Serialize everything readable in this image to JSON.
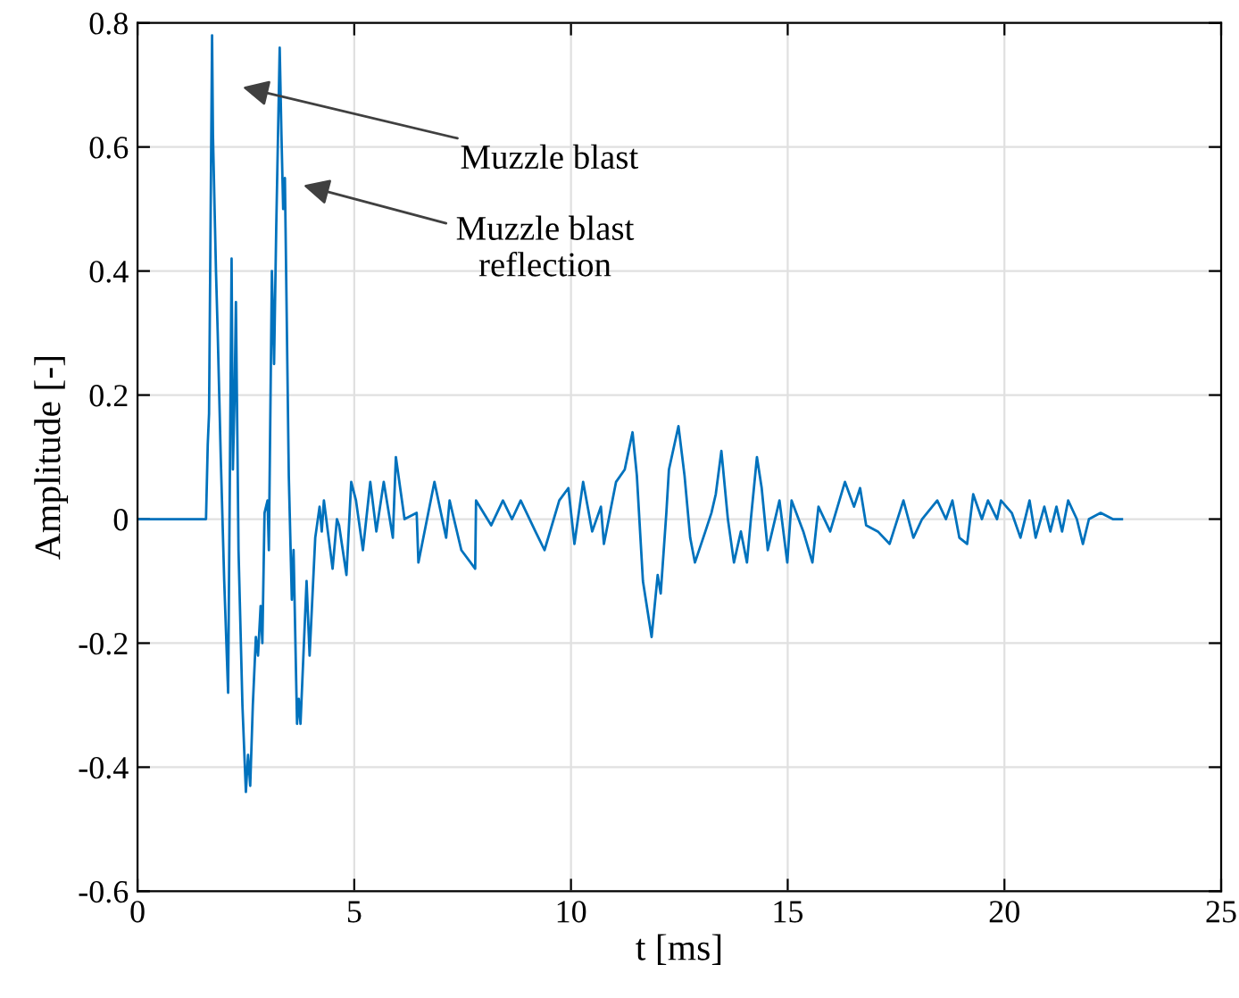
{
  "chart_data": {
    "type": "line",
    "xlabel": "t [ms]",
    "ylabel": "Amplitude [-]",
    "xlim": [
      0,
      25
    ],
    "xticks": [
      0,
      5,
      10,
      15,
      20,
      25
    ],
    "ylim": [
      -0.6,
      0.8
    ],
    "yticks": [
      -0.6,
      -0.4,
      -0.2,
      0,
      0.2,
      0.4,
      0.6,
      0.8
    ],
    "grid": true,
    "legend": false,
    "marker": "none",
    "line_style": "solid",
    "annotations": [
      "Muzzle blast",
      "Muzzle blast\nreflection"
    ],
    "series": [
      {
        "color": "#0072bd",
        "x": [
          0,
          1.58,
          1.62,
          1.65,
          1.72,
          1.74,
          1.81,
          1.85,
          1.92,
          2.0,
          2.09,
          2.17,
          2.2,
          2.24,
          2.27,
          2.33,
          2.42,
          2.5,
          2.55,
          2.6,
          2.66,
          2.73,
          2.78,
          2.84,
          2.88,
          2.93,
          3.0,
          3.03,
          3.1,
          3.15,
          3.2,
          3.28,
          3.32,
          3.36,
          3.4,
          3.49,
          3.56,
          3.6,
          3.68,
          3.72,
          3.76,
          3.9,
          3.97,
          4.1,
          4.2,
          4.25,
          4.3,
          4.5,
          4.6,
          4.65,
          4.82,
          4.93,
          5.04,
          5.2,
          5.37,
          5.51,
          5.68,
          5.89,
          5.96,
          6.16,
          6.44,
          6.48,
          6.85,
          7.12,
          7.2,
          7.47,
          7.79,
          7.81,
          8.16,
          8.43,
          8.64,
          8.84,
          9.18,
          9.39,
          9.73,
          9.94,
          10.08,
          10.28,
          10.49,
          10.69,
          10.76,
          11.04,
          11.24,
          11.42,
          11.52,
          11.66,
          11.86,
          12.0,
          12.07,
          12.2,
          12.26,
          12.48,
          12.62,
          12.75,
          12.86,
          13.1,
          13.24,
          13.34,
          13.47,
          13.62,
          13.76,
          13.92,
          14.06,
          14.15,
          14.29,
          14.4,
          14.54,
          14.81,
          14.99,
          15.09,
          15.36,
          15.57,
          15.71,
          15.98,
          16.32,
          16.53,
          16.67,
          16.81,
          17.08,
          17.35,
          17.67,
          17.9,
          18.1,
          18.45,
          18.65,
          18.8,
          18.96,
          19.14,
          19.28,
          19.48,
          19.62,
          19.83,
          19.92,
          20.17,
          20.37,
          20.58,
          20.72,
          20.92,
          21.06,
          21.2,
          21.33,
          21.47,
          21.67,
          21.81,
          21.95,
          22.22,
          22.5,
          22.71
        ],
        "values": [
          0,
          0,
          0.12,
          0.17,
          0.78,
          0.62,
          0.4,
          0.3,
          0.1,
          -0.1,
          -0.28,
          0.42,
          0.08,
          0.2,
          0.35,
          -0.05,
          -0.3,
          -0.44,
          -0.38,
          -0.43,
          -0.3,
          -0.19,
          -0.22,
          -0.14,
          -0.2,
          0.01,
          0.03,
          -0.05,
          0.4,
          0.25,
          0.47,
          0.76,
          0.62,
          0.5,
          0.55,
          0.07,
          -0.13,
          -0.05,
          -0.33,
          -0.29,
          -0.33,
          -0.1,
          -0.22,
          -0.03,
          0.02,
          -0.02,
          0.03,
          -0.08,
          0.0,
          -0.01,
          -0.09,
          0.06,
          0.03,
          -0.05,
          0.06,
          -0.02,
          0.06,
          -0.03,
          0.1,
          0.0,
          0.01,
          -0.07,
          0.06,
          -0.03,
          0.03,
          -0.05,
          -0.08,
          0.03,
          -0.01,
          0.03,
          0.0,
          0.03,
          -0.02,
          -0.05,
          0.03,
          0.05,
          -0.04,
          0.06,
          -0.02,
          0.02,
          -0.04,
          0.06,
          0.08,
          0.14,
          0.07,
          -0.1,
          -0.19,
          -0.09,
          -0.12,
          0.01,
          0.08,
          0.15,
          0.07,
          -0.03,
          -0.07,
          -0.02,
          0.01,
          0.04,
          0.11,
          0.0,
          -0.07,
          -0.02,
          -0.07,
          0.0,
          0.1,
          0.05,
          -0.05,
          0.03,
          -0.07,
          0.03,
          -0.02,
          -0.07,
          0.02,
          -0.02,
          0.06,
          0.02,
          0.05,
          -0.01,
          -0.02,
          -0.04,
          0.03,
          -0.03,
          0.0,
          0.03,
          0.0,
          0.03,
          -0.03,
          -0.04,
          0.04,
          0.0,
          0.03,
          0.0,
          0.03,
          0.01,
          -0.03,
          0.03,
          -0.03,
          0.02,
          -0.02,
          0.02,
          -0.02,
          0.03,
          0.0,
          -0.04,
          0.0,
          0.01,
          0.0,
          0.0
        ]
      }
    ]
  }
}
